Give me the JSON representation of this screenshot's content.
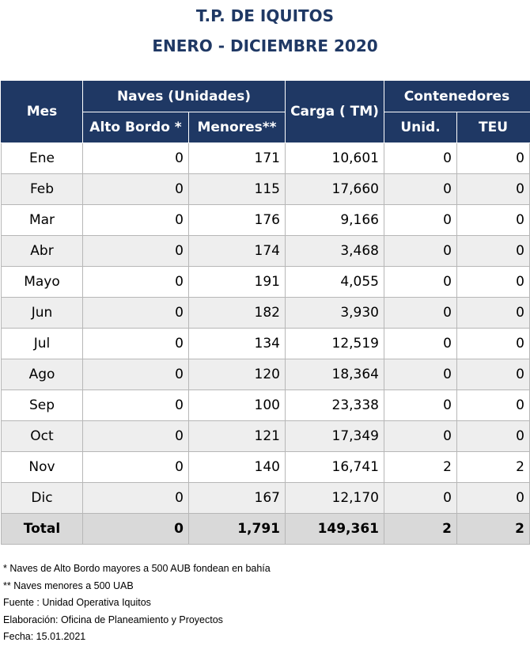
{
  "title": {
    "line1": "T.P. DE IQUITOS",
    "line2": "ENERO - DICIEMBRE 2020"
  },
  "table": {
    "headers": {
      "mes": "Mes",
      "naves": "Naves (Unidades)",
      "alto_bordo": "Alto Bordo *",
      "menores": "Menores**",
      "carga": "Carga ( TM)",
      "contenedores": "Contenedores",
      "unid": "Unid.",
      "teu": "TEU"
    },
    "rows": [
      {
        "mes": "Ene",
        "alto_bordo": "0",
        "menores": "171",
        "carga": "10,601",
        "unid": "0",
        "teu": "0"
      },
      {
        "mes": "Feb",
        "alto_bordo": "0",
        "menores": "115",
        "carga": "17,660",
        "unid": "0",
        "teu": "0"
      },
      {
        "mes": "Mar",
        "alto_bordo": "0",
        "menores": "176",
        "carga": "9,166",
        "unid": "0",
        "teu": "0"
      },
      {
        "mes": "Abr",
        "alto_bordo": "0",
        "menores": "174",
        "carga": "3,468",
        "unid": "0",
        "teu": "0"
      },
      {
        "mes": "Mayo",
        "alto_bordo": "0",
        "menores": "191",
        "carga": "4,055",
        "unid": "0",
        "teu": "0"
      },
      {
        "mes": "Jun",
        "alto_bordo": "0",
        "menores": "182",
        "carga": "3,930",
        "unid": "0",
        "teu": "0"
      },
      {
        "mes": "Jul",
        "alto_bordo": "0",
        "menores": "134",
        "carga": "12,519",
        "unid": "0",
        "teu": "0"
      },
      {
        "mes": "Ago",
        "alto_bordo": "0",
        "menores": "120",
        "carga": "18,364",
        "unid": "0",
        "teu": "0"
      },
      {
        "mes": "Sep",
        "alto_bordo": "0",
        "menores": "100",
        "carga": "23,338",
        "unid": "0",
        "teu": "0"
      },
      {
        "mes": "Oct",
        "alto_bordo": "0",
        "menores": "121",
        "carga": "17,349",
        "unid": "0",
        "teu": "0"
      },
      {
        "mes": "Nov",
        "alto_bordo": "0",
        "menores": "140",
        "carga": "16,741",
        "unid": "2",
        "teu": "2"
      },
      {
        "mes": "Dic",
        "alto_bordo": "0",
        "menores": "167",
        "carga": "12,170",
        "unid": "0",
        "teu": "0"
      }
    ],
    "total": {
      "mes": "Total",
      "alto_bordo": "0",
      "menores": "1,791",
      "carga": "149,361",
      "unid": "2",
      "teu": "2"
    }
  },
  "notes": {
    "note1": "* Naves de Alto Bordo mayores a 500 AUB fondean en bahía",
    "note2": "** Naves menores a 500 UAB",
    "fuente": "Fuente : Unidad Operativa Iquitos",
    "elaboracion": "Elaboración: Oficina de Planeamiento y Proyectos",
    "fecha": "Fecha: 15.01.2021"
  },
  "colors": {
    "header_bg": "#1f3864",
    "title": "#1f3864",
    "row_alt": "#eeeeee",
    "total_bg": "#d9d9d9"
  }
}
